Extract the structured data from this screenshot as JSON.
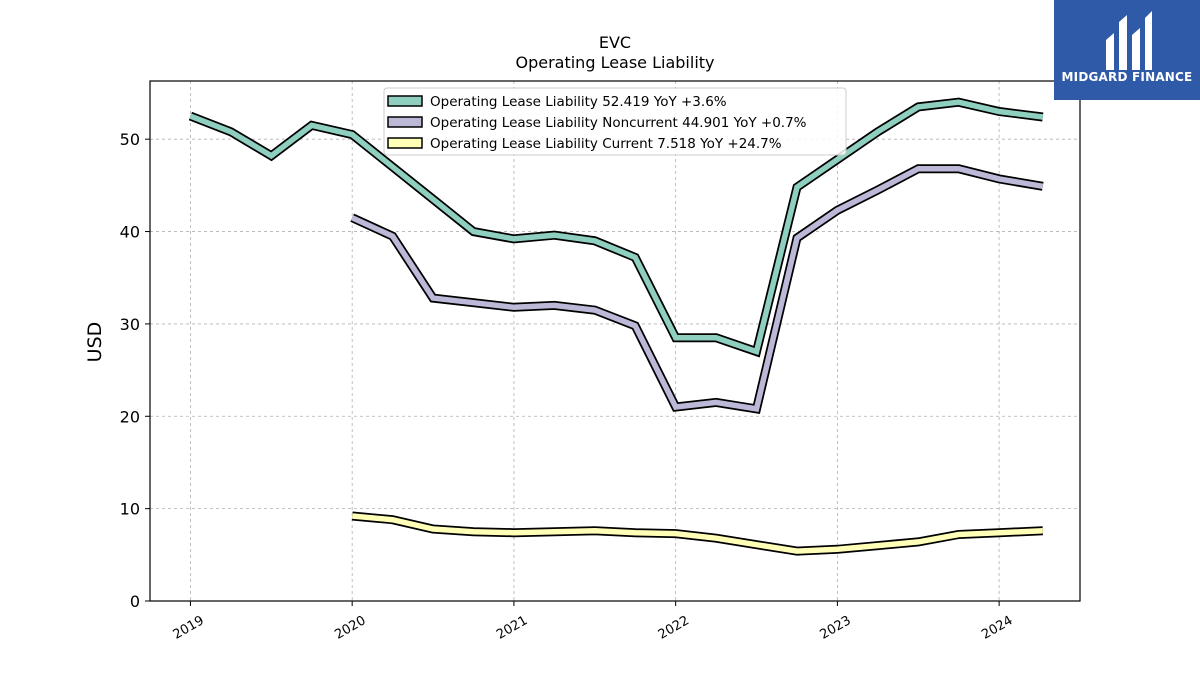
{
  "chart_data": {
    "type": "line",
    "title": "EVC",
    "subtitle": "Operating Lease Liability",
    "xlabel": "",
    "ylabel": "USD",
    "xlim": [
      2018.75,
      2024.5
    ],
    "ylim": [
      0,
      56.3
    ],
    "yticks": [
      0,
      10,
      20,
      30,
      40,
      50
    ],
    "xticks": [
      "2019",
      "2020",
      "2021",
      "2022",
      "2023",
      "2024"
    ],
    "grid": true,
    "legend_position": "top-center",
    "series": [
      {
        "name": "Operating Lease Liability  52.419 YoY +3.6%",
        "color": "#8ecfc0",
        "points": [
          [
            2019.0,
            52.5
          ],
          [
            2019.25,
            50.8
          ],
          [
            2019.5,
            48.2
          ],
          [
            2019.75,
            51.5
          ],
          [
            2020.0,
            50.5
          ],
          [
            2020.25,
            47.0
          ],
          [
            2020.5,
            43.5
          ],
          [
            2020.75,
            40.0
          ],
          [
            2021.0,
            39.2
          ],
          [
            2021.25,
            39.6
          ],
          [
            2021.5,
            39.0
          ],
          [
            2021.75,
            37.2
          ],
          [
            2022.0,
            28.5
          ],
          [
            2022.25,
            28.5
          ],
          [
            2022.5,
            27.0
          ],
          [
            2022.75,
            44.8
          ],
          [
            2023.0,
            47.8
          ],
          [
            2023.25,
            50.8
          ],
          [
            2023.5,
            53.5
          ],
          [
            2023.75,
            54.0
          ],
          [
            2024.0,
            53.0
          ],
          [
            2024.27,
            52.4
          ]
        ]
      },
      {
        "name": "Operating Lease Liability Noncurrent  44.901 YoY +0.7%",
        "color": "#bcb8d8",
        "points": [
          [
            2020.0,
            41.5
          ],
          [
            2020.25,
            39.5
          ],
          [
            2020.5,
            32.8
          ],
          [
            2020.75,
            32.3
          ],
          [
            2021.0,
            31.8
          ],
          [
            2021.25,
            32.0
          ],
          [
            2021.5,
            31.5
          ],
          [
            2021.75,
            29.8
          ],
          [
            2022.0,
            21.0
          ],
          [
            2022.25,
            21.5
          ],
          [
            2022.5,
            20.8
          ],
          [
            2022.75,
            39.3
          ],
          [
            2023.0,
            42.3
          ],
          [
            2023.25,
            44.5
          ],
          [
            2023.5,
            46.8
          ],
          [
            2023.75,
            46.8
          ],
          [
            2024.0,
            45.7
          ],
          [
            2024.27,
            44.9
          ]
        ]
      },
      {
        "name": "Operating Lease Liability Current  7.518 YoY +24.7%",
        "color": "#ffffb8",
        "points": [
          [
            2020.0,
            9.2
          ],
          [
            2020.25,
            8.8
          ],
          [
            2020.5,
            7.8
          ],
          [
            2020.75,
            7.5
          ],
          [
            2021.0,
            7.4
          ],
          [
            2021.25,
            7.5
          ],
          [
            2021.5,
            7.6
          ],
          [
            2021.75,
            7.4
          ],
          [
            2022.0,
            7.3
          ],
          [
            2022.25,
            6.8
          ],
          [
            2022.5,
            6.1
          ],
          [
            2022.75,
            5.4
          ],
          [
            2023.0,
            5.6
          ],
          [
            2023.25,
            6.0
          ],
          [
            2023.5,
            6.4
          ],
          [
            2023.75,
            7.2
          ],
          [
            2024.0,
            7.4
          ],
          [
            2024.27,
            7.6
          ]
        ]
      }
    ]
  },
  "logo": {
    "text": "MIDGARD FINANCE",
    "background": "#2f5aa8"
  }
}
